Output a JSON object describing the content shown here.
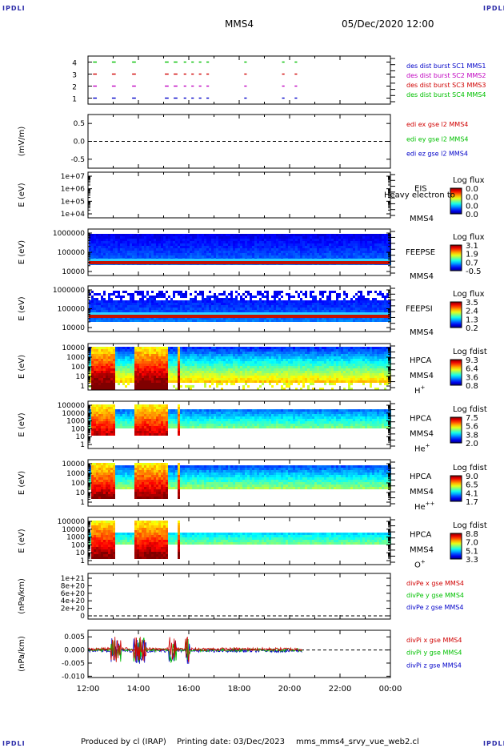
{
  "header": {
    "corner_tl": "IPDLI",
    "corner_tr": "IPDLI",
    "corner_bl": "IPDLI",
    "corner_br": "IPDLI",
    "spacecraft": "MMS4",
    "datetime": "05/Dec/2020 12:00"
  },
  "footer": {
    "produced": "Produced by cl (IRAP)",
    "printing": "Printing date: 03/Dec/2023",
    "file": "mms_mms4_srvy_vue_web2.cl"
  },
  "colors": {
    "blue": "#0000c8",
    "red": "#d00000",
    "magenta": "#c000c0",
    "green": "#00c000"
  },
  "chart_data": {
    "type": "line",
    "xaxis": {
      "ticks": [
        "12:00",
        "14:00",
        "16:00",
        "18:00",
        "20:00",
        "22:00",
        "00:00"
      ],
      "range": [
        12,
        24
      ]
    },
    "panels": [
      {
        "id": "burst",
        "type": "scatter",
        "yticks": [
          "4",
          "3",
          "2",
          "1"
        ],
        "ylim": [
          0.5,
          4.5
        ],
        "legend": [
          {
            "text": "des dist burst SC1 MMS1",
            "color": "#0000c8"
          },
          {
            "text": "des dist burst SC2 MMS2",
            "color": "#c000c0"
          },
          {
            "text": "des dist burst SC3 MMS3",
            "color": "#d00000"
          },
          {
            "text": "des dist burst SC4 MMS4",
            "color": "#00c000"
          }
        ],
        "segments": [
          [
            12.2,
            12.35
          ],
          [
            12.95,
            13.1
          ],
          [
            13.75,
            13.9
          ],
          [
            15.05,
            15.2
          ],
          [
            15.4,
            15.55
          ],
          [
            15.8,
            15.9
          ],
          [
            16.1,
            16.2
          ],
          [
            16.4,
            16.5
          ],
          [
            16.7,
            16.8
          ],
          [
            18.2,
            18.3
          ],
          [
            19.7,
            19.8
          ],
          [
            20.2,
            20.3
          ]
        ]
      },
      {
        "id": "edi",
        "ylabel": "(mV/m)",
        "yticks": [
          "0.5",
          "0.0",
          "-0.5"
        ],
        "ylim": [
          -0.75,
          0.75
        ],
        "legend": [
          {
            "text": "edi ex gse l2 MMS4",
            "color": "#d00000"
          },
          {
            "text": "edi ey gse l2 MMS4",
            "color": "#00c000"
          },
          {
            "text": "edi ez gse l2 MMS4",
            "color": "#0000c8"
          }
        ]
      },
      {
        "id": "eis",
        "type": "heatmap",
        "ylabel": "E (eV)",
        "yticks": [
          "1e+07",
          "1e+06",
          "1e+05",
          "1e+04"
        ],
        "instrument": "EIS",
        "overlap_text": "Heavy electron to",
        "spacecraft": "MMS4",
        "cb_title": "Log flux",
        "cb_ticks": [
          "0.0",
          "0.0",
          "0.0",
          "0.0"
        ]
      },
      {
        "id": "feepse",
        "type": "heatmap",
        "ylabel": "E (eV)",
        "yticks": [
          "1000000",
          "100000",
          "10000"
        ],
        "instrument": "FEEPSE",
        "spacecraft": "MMS4",
        "cb_title": "Log flux",
        "cb_ticks": [
          "3.1",
          "1.9",
          "0.7",
          "-0.5"
        ]
      },
      {
        "id": "feepsi",
        "type": "heatmap",
        "ylabel": "E (eV)",
        "yticks": [
          "1000000",
          "100000",
          "10000"
        ],
        "instrument": "FEEPSI",
        "spacecraft": "MMS4",
        "cb_title": "Log flux",
        "cb_ticks": [
          "3.5",
          "2.4",
          "1.3",
          "0.2"
        ]
      },
      {
        "id": "hpca-h",
        "type": "heatmap",
        "ylabel": "E (eV)",
        "yticks": [
          "10000",
          "1000",
          "100",
          "10",
          "1"
        ],
        "instrument": "HPCA",
        "spacecraft": "MMS4",
        "species": "H",
        "species_sup": "+",
        "cb_title": "Log fdist",
        "cb_ticks": [
          "9.3",
          "6.4",
          "3.6",
          "0.8"
        ]
      },
      {
        "id": "hpca-he",
        "type": "heatmap",
        "ylabel": "E (eV)",
        "yticks": [
          "100000",
          "10000",
          "1000",
          "100",
          "10",
          "1"
        ],
        "instrument": "HPCA",
        "spacecraft": "MMS4",
        "species": "He",
        "species_sup": "+",
        "cb_title": "Log fdist",
        "cb_ticks": [
          "7.5",
          "5.6",
          "3.8",
          "2.0"
        ]
      },
      {
        "id": "hpca-hepp",
        "type": "heatmap",
        "ylabel": "E (eV)",
        "yticks": [
          "10000",
          "1000",
          "100",
          "10",
          "1"
        ],
        "instrument": "HPCA",
        "spacecraft": "MMS4",
        "species": "He",
        "species_sup": "++",
        "cb_title": "Log fdist",
        "cb_ticks": [
          "9.0",
          "6.5",
          "4.1",
          "1.7"
        ]
      },
      {
        "id": "hpca-o",
        "type": "heatmap",
        "ylabel": "E (eV)",
        "yticks": [
          "100000",
          "10000",
          "1000",
          "100",
          "10",
          "1"
        ],
        "instrument": "HPCA",
        "spacecraft": "MMS4",
        "species": "O",
        "species_sup": "+",
        "cb_title": "Log fdist",
        "cb_ticks": [
          "8.8",
          "7.0",
          "5.1",
          "3.3"
        ]
      },
      {
        "id": "divpe",
        "ylabel": "(nPa/km)",
        "yticks": [
          "1e+21",
          "8e+20",
          "6e+20",
          "4e+20",
          "2e+20",
          "0"
        ],
        "ylim": [
          0,
          1e+21
        ],
        "legend": [
          {
            "text": "divPe x gse MMS4",
            "color": "#d00000"
          },
          {
            "text": "divPe y gse MMS4",
            "color": "#00c000"
          },
          {
            "text": "divPe z gse MMS4",
            "color": "#0000c8"
          }
        ]
      },
      {
        "id": "divpi",
        "ylabel": "(nPa/km)",
        "yticks": [
          "0.005",
          "0.000",
          "-0.005",
          "-0.010"
        ],
        "ylim": [
          -0.0105,
          0.0075
        ],
        "legend": [
          {
            "text": "divPi x gse MMS4",
            "color": "#d00000"
          },
          {
            "text": "divPi y gse MMS4",
            "color": "#00c000"
          },
          {
            "text": "divPi z gse MMS4",
            "color": "#0000c8"
          }
        ],
        "data_end": 20.5
      }
    ]
  }
}
